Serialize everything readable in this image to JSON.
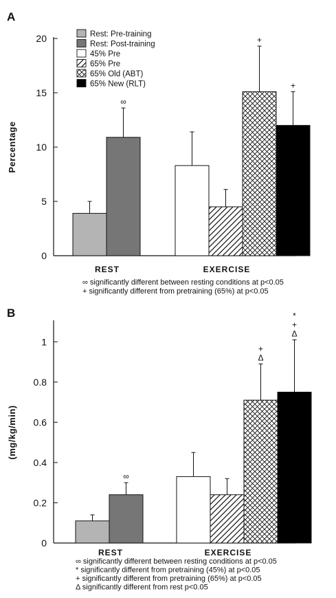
{
  "patterns": {
    "rest_pre": {
      "fill": "#b4b4b4",
      "pattern": "solid"
    },
    "rest_post": {
      "fill": "#767676",
      "pattern": "solid"
    },
    "pre45": {
      "fill": "#ffffff",
      "pattern": "solid"
    },
    "pre65": {
      "fill": "#ffffff",
      "pattern": "diagonal"
    },
    "old65": {
      "fill": "#ffffff",
      "pattern": "crosshatch"
    },
    "new65": {
      "fill": "#000000",
      "pattern": "solid"
    }
  },
  "legend": [
    {
      "key": "rest_pre",
      "label": "Rest: Pre-training"
    },
    {
      "key": "rest_post",
      "label": "Rest: Post-training"
    },
    {
      "key": "pre45",
      "label": "45% Pre"
    },
    {
      "key": "pre65",
      "label": "65% Pre"
    },
    {
      "key": "old65",
      "label": "65% Old (ABT)"
    },
    {
      "key": "new65",
      "label": "65% New (RLT)"
    }
  ],
  "chart_data": [
    {
      "panel": "A",
      "type": "bar",
      "ylabel": "Percentage",
      "ylim": [
        0,
        20
      ],
      "yticks": [
        "0",
        "5",
        "10",
        "15",
        "20"
      ],
      "groups": [
        "REST",
        "EXERCISE"
      ],
      "bars": [
        {
          "group": "REST",
          "key": "rest_pre",
          "value": 3.9,
          "error": 1.1,
          "marks": []
        },
        {
          "group": "REST",
          "key": "rest_post",
          "value": 10.9,
          "error": 2.7,
          "marks": [
            "∞"
          ]
        },
        {
          "group": "EXERCISE",
          "key": "pre45",
          "value": 8.3,
          "error": 3.1,
          "marks": []
        },
        {
          "group": "EXERCISE",
          "key": "pre65",
          "value": 4.5,
          "error": 1.6,
          "marks": []
        },
        {
          "group": "EXERCISE",
          "key": "old65",
          "value": 15.1,
          "error": 4.2,
          "marks": [
            "+"
          ]
        },
        {
          "group": "EXERCISE",
          "key": "new65",
          "value": 12.0,
          "error": 3.1,
          "marks": [
            "+"
          ]
        }
      ],
      "notes": [
        "∞ significantly different between resting conditions at p<0.05",
        "+ significantly different from pretraining (65%) at p<0.05"
      ]
    },
    {
      "panel": "B",
      "type": "bar",
      "ylabel": "(mg/kg/min)",
      "ylim": [
        0,
        1.1
      ],
      "yticks": [
        "0",
        "0.2",
        "0.4",
        "0.6",
        "0.8",
        "1"
      ],
      "groups": [
        "REST",
        "EXERCISE"
      ],
      "bars": [
        {
          "group": "REST",
          "key": "rest_pre",
          "value": 0.11,
          "error": 0.03,
          "marks": []
        },
        {
          "group": "REST",
          "key": "rest_post",
          "value": 0.24,
          "error": 0.06,
          "marks": [
            "∞"
          ]
        },
        {
          "group": "EXERCISE",
          "key": "pre45",
          "value": 0.33,
          "error": 0.12,
          "marks": []
        },
        {
          "group": "EXERCISE",
          "key": "pre65",
          "value": 0.24,
          "error": 0.08,
          "marks": []
        },
        {
          "group": "EXERCISE",
          "key": "old65",
          "value": 0.71,
          "error": 0.18,
          "marks": [
            "+",
            "Δ"
          ]
        },
        {
          "group": "EXERCISE",
          "key": "new65",
          "value": 0.75,
          "error": 0.26,
          "marks": [
            "*",
            "+",
            "Δ"
          ]
        }
      ],
      "notes": [
        "∞ significantly different between resting conditions at p<0.05",
        "* significantly different from pretraining (45%) at p<0.05",
        "+ significantly different from pretraining (65%) at p<0.05",
        "Δ significantly different from rest p<0.05"
      ]
    }
  ]
}
